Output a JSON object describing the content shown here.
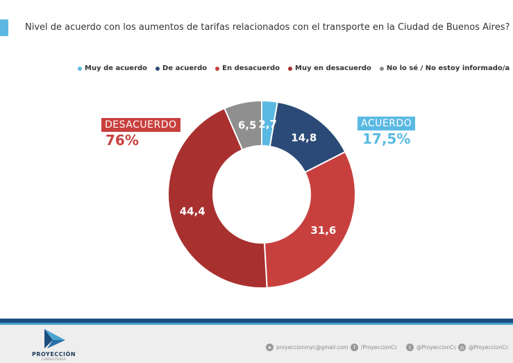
{
  "title": "Nivel de acuerdo con los aumentos de tarifas relacionados con el transporte en la Ciudad de Buenos Aires?",
  "chart_data": {
    "type": "pie",
    "donut": true,
    "categories": [
      "Muy de acuerdo",
      "De acuerdo",
      "En desacuerdo",
      "Muy en desacuerdo",
      "No lo sé / No estoy informado/a"
    ],
    "values": [
      2.7,
      14.8,
      31.6,
      44.4,
      6.5
    ],
    "value_labels": [
      "2,7",
      "14,8",
      "31,6",
      "44,4",
      "6,5"
    ],
    "colors": [
      "#5ab9e3",
      "#2b4a77",
      "#c8403e",
      "#a8302f",
      "#8f8f8f"
    ],
    "legend_position": "top",
    "groups": [
      {
        "label": "DESACUERDO",
        "value": "76%",
        "color": "#c8403e"
      },
      {
        "label": "ACUERDO",
        "value": "17,5%",
        "color": "#5ab9e3"
      }
    ]
  },
  "footer": {
    "brand": "PROYECCIÓN",
    "brand_sub": "CONSULTORES",
    "email": "proyeccionmyc@gmail.com",
    "facebook": "/ProyeccionCc",
    "twitter": "@ProyeccionCc",
    "instagram": "@ProyeccionCc",
    "icons": [
      "send-icon",
      "facebook-icon",
      "twitter-icon",
      "instagram-icon"
    ]
  }
}
